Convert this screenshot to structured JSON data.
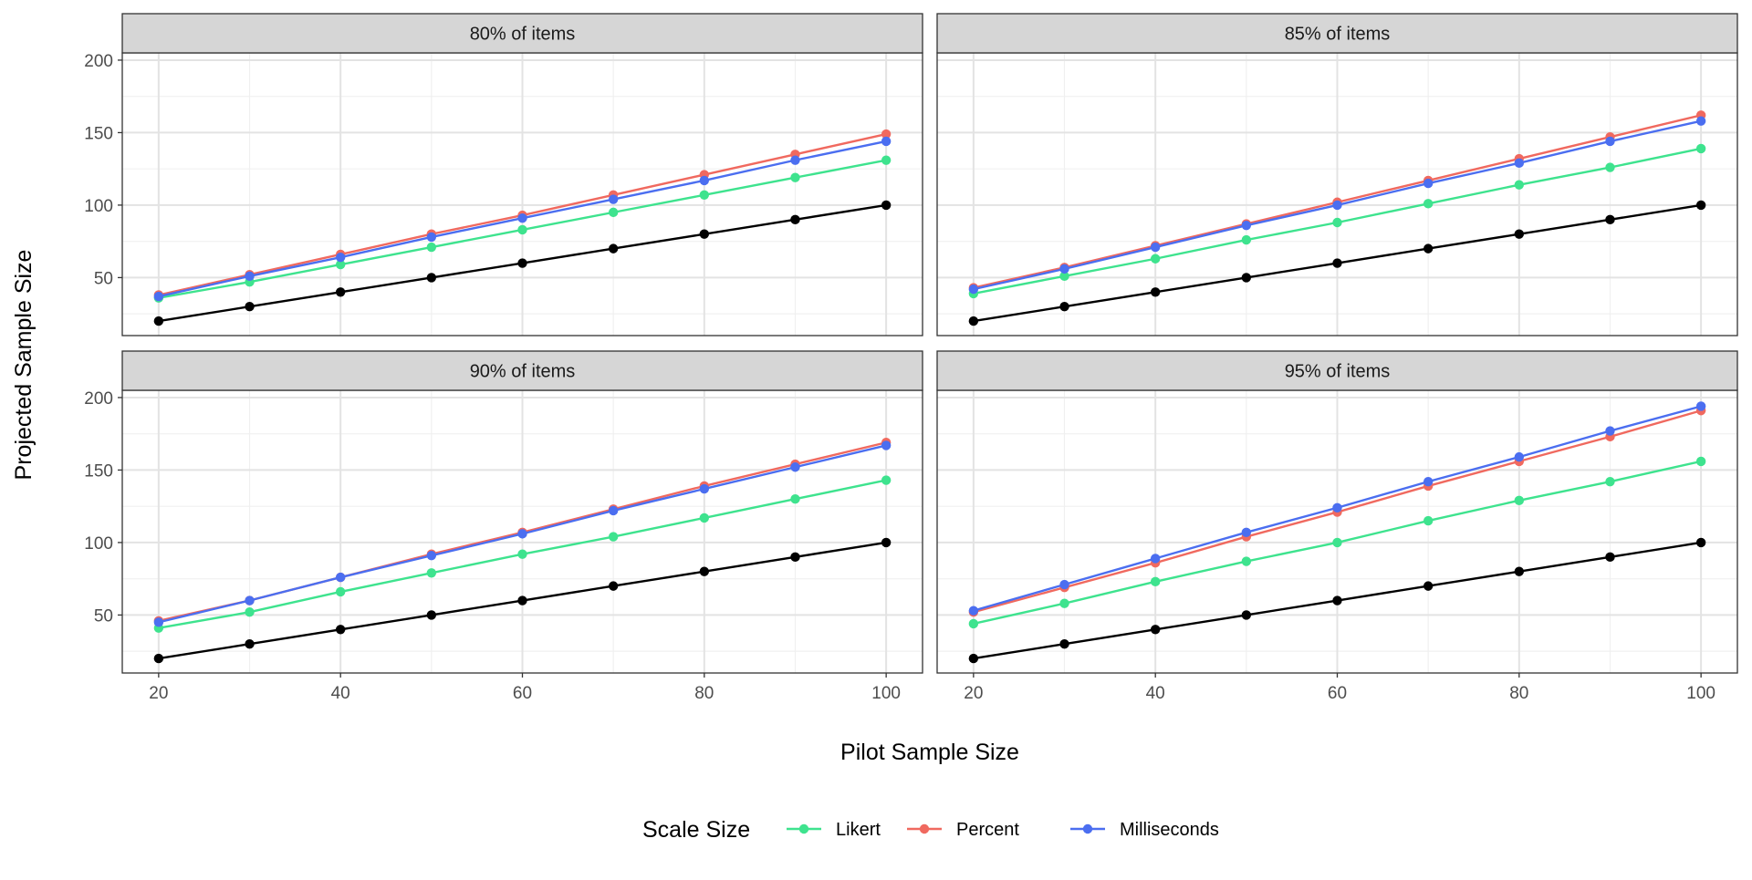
{
  "chart_data": {
    "type": "line",
    "layout": "facet-grid-2x2",
    "xlabel": "Pilot Sample Size",
    "ylabel": "Projected Sample Size",
    "xlim": [
      16,
      104
    ],
    "ylim": [
      10,
      205
    ],
    "x_ticks": [
      20,
      40,
      60,
      80,
      100
    ],
    "y_ticks": [
      50,
      100,
      150,
      200
    ],
    "grid": true,
    "x": [
      20,
      30,
      40,
      50,
      60,
      70,
      80,
      90,
      100
    ],
    "legend": {
      "title": "Scale Size",
      "position": "bottom",
      "entries": [
        {
          "name": "Likert",
          "color": "#3ee38e"
        },
        {
          "name": "Percent",
          "color": "#f0695f"
        },
        {
          "name": "Milliseconds",
          "color": "#4b6ef0"
        }
      ]
    },
    "panels": [
      {
        "title": "80% of items",
        "series": [
          {
            "name": "Likert",
            "color": "#3ee38e",
            "values": [
              36,
              47,
              59,
              71,
              83,
              95,
              107,
              119,
              131
            ]
          },
          {
            "name": "Percent",
            "color": "#f0695f",
            "values": [
              38,
              52,
              66,
              80,
              93,
              107,
              121,
              135,
              149
            ]
          },
          {
            "name": "Milliseconds",
            "color": "#4b6ef0",
            "values": [
              37,
              51,
              64,
              78,
              91,
              104,
              117,
              131,
              144
            ]
          },
          {
            "color": "#000000",
            "values": [
              20,
              30,
              40,
              50,
              60,
              70,
              80,
              90,
              100
            ]
          }
        ]
      },
      {
        "title": "85% of items",
        "series": [
          {
            "name": "Likert",
            "color": "#3ee38e",
            "values": [
              39,
              51,
              63,
              76,
              88,
              101,
              114,
              126,
              139
            ]
          },
          {
            "name": "Percent",
            "color": "#f0695f",
            "values": [
              43,
              57,
              72,
              87,
              102,
              117,
              132,
              147,
              162
            ]
          },
          {
            "name": "Milliseconds",
            "color": "#4b6ef0",
            "values": [
              42,
              56,
              71,
              86,
              100,
              115,
              129,
              144,
              158
            ]
          },
          {
            "color": "#000000",
            "values": [
              20,
              30,
              40,
              50,
              60,
              70,
              80,
              90,
              100
            ]
          }
        ]
      },
      {
        "title": "90% of items",
        "series": [
          {
            "name": "Likert",
            "color": "#3ee38e",
            "values": [
              41,
              52,
              66,
              79,
              92,
              104,
              117,
              130,
              143
            ]
          },
          {
            "name": "Percent",
            "color": "#f0695f",
            "values": [
              46,
              60,
              76,
              92,
              107,
              123,
              139,
              154,
              169
            ]
          },
          {
            "name": "Milliseconds",
            "color": "#4b6ef0",
            "values": [
              45,
              60,
              76,
              91,
              106,
              122,
              137,
              152,
              167
            ]
          },
          {
            "color": "#000000",
            "values": [
              20,
              30,
              40,
              50,
              60,
              70,
              80,
              90,
              100
            ]
          }
        ]
      },
      {
        "title": "95% of items",
        "series": [
          {
            "name": "Likert",
            "color": "#3ee38e",
            "values": [
              44,
              58,
              73,
              87,
              100,
              115,
              129,
              142,
              156
            ]
          },
          {
            "name": "Percent",
            "color": "#f0695f",
            "values": [
              52,
              69,
              86,
              104,
              121,
              139,
              156,
              173,
              191
            ]
          },
          {
            "name": "Milliseconds",
            "color": "#4b6ef0",
            "values": [
              53,
              71,
              89,
              107,
              124,
              142,
              159,
              177,
              194
            ]
          },
          {
            "color": "#000000",
            "values": [
              20,
              30,
              40,
              50,
              60,
              70,
              80,
              90,
              100
            ]
          }
        ]
      }
    ]
  }
}
